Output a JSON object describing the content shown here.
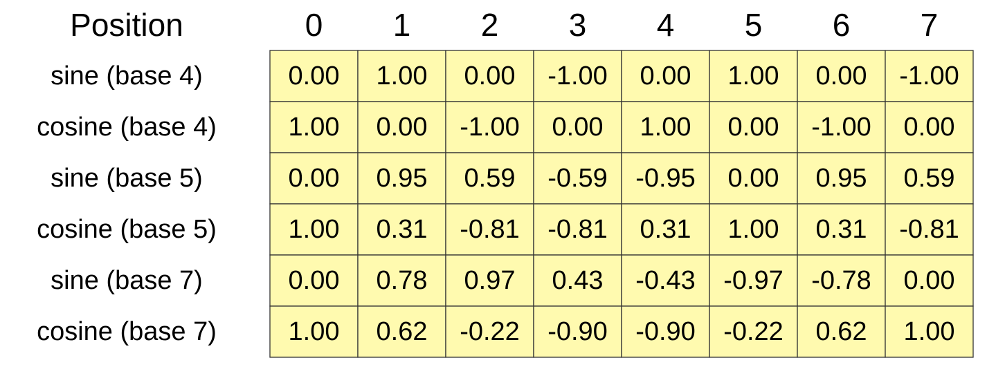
{
  "table": {
    "header": [
      "Position",
      "0",
      "1",
      "2",
      "3",
      "4",
      "5",
      "6",
      "7"
    ],
    "rows": [
      [
        "sine (base 4)",
        "0.00",
        "1.00",
        "0.00",
        "-1.00",
        "0.00",
        "1.00",
        "0.00",
        "-1.00"
      ],
      [
        "cosine (base 4)",
        "1.00",
        "0.00",
        "-1.00",
        "0.00",
        "1.00",
        "0.00",
        "-1.00",
        "0.00"
      ],
      [
        "sine (base 5)",
        "0.00",
        "0.95",
        "0.59",
        "-0.59",
        "-0.95",
        "0.00",
        "0.95",
        "0.59"
      ],
      [
        "cosine (base 5)",
        "1.00",
        "0.31",
        "-0.81",
        "-0.81",
        "0.31",
        "1.00",
        "0.31",
        "-0.81"
      ],
      [
        "sine (base 7)",
        "0.00",
        "0.78",
        "0.97",
        "0.43",
        "-0.43",
        "-0.97",
        "-0.78",
        "0.00"
      ],
      [
        "cosine (base 7)",
        "1.00",
        "0.62",
        "-0.22",
        "-0.90",
        "-0.90",
        "-0.22",
        "0.62",
        "1.00"
      ]
    ]
  }
}
